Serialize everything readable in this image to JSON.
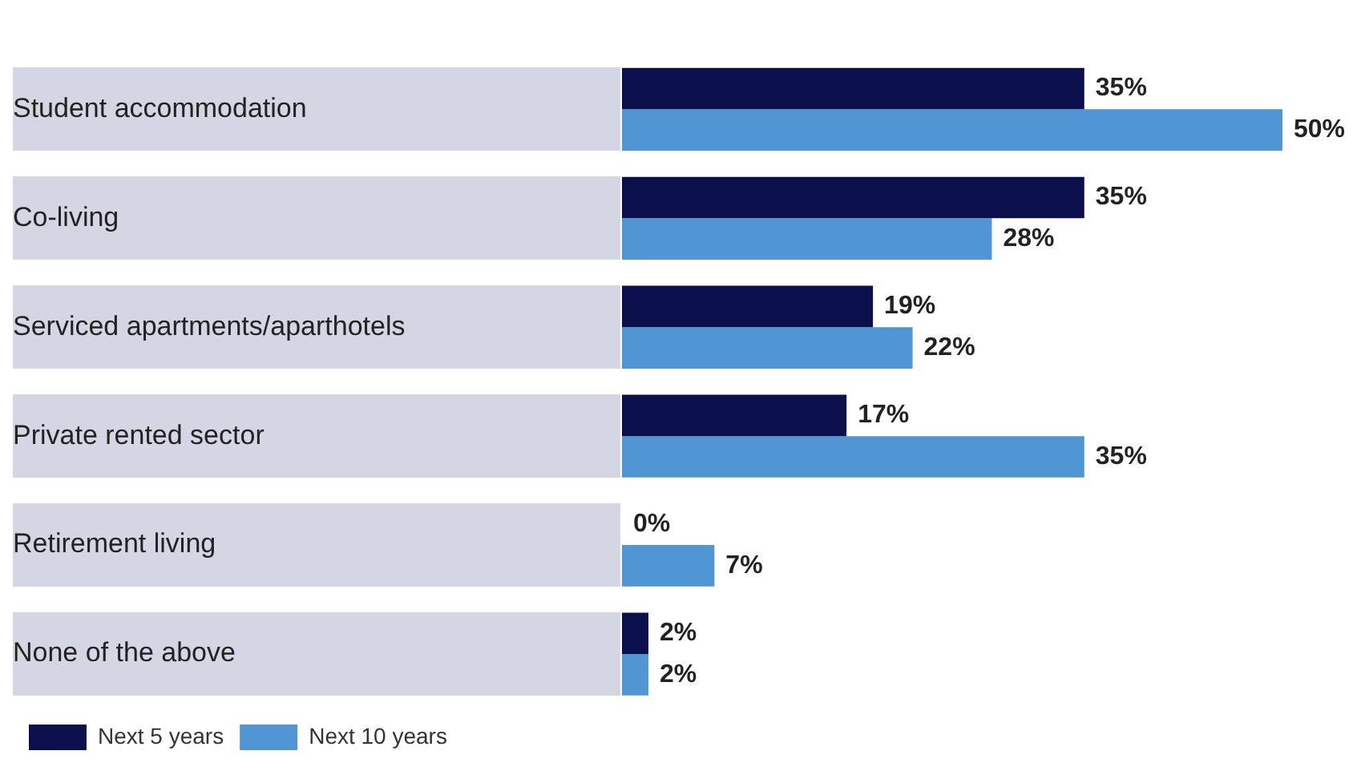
{
  "chart_data": {
    "type": "bar",
    "orientation": "horizontal",
    "categories": [
      "Student accommodation",
      "Co-living",
      "Serviced apartments/aparthotels",
      "Private rented sector",
      "Retirement living",
      "None of the above"
    ],
    "series": [
      {
        "name": "Next 5 years",
        "color": "#0b0f4b",
        "values": [
          35,
          35,
          19,
          17,
          0,
          2
        ],
        "value_labels": [
          "35%",
          "35%",
          "19%",
          "17%",
          "0%",
          "2%"
        ]
      },
      {
        "name": "Next 10 years",
        "color": "#5196d4",
        "values": [
          50,
          28,
          22,
          35,
          7,
          2
        ],
        "value_labels": [
          "50%",
          "28%",
          "22%",
          "35%",
          "7%",
          "2%"
        ]
      }
    ],
    "legend": "bottom left"
  }
}
